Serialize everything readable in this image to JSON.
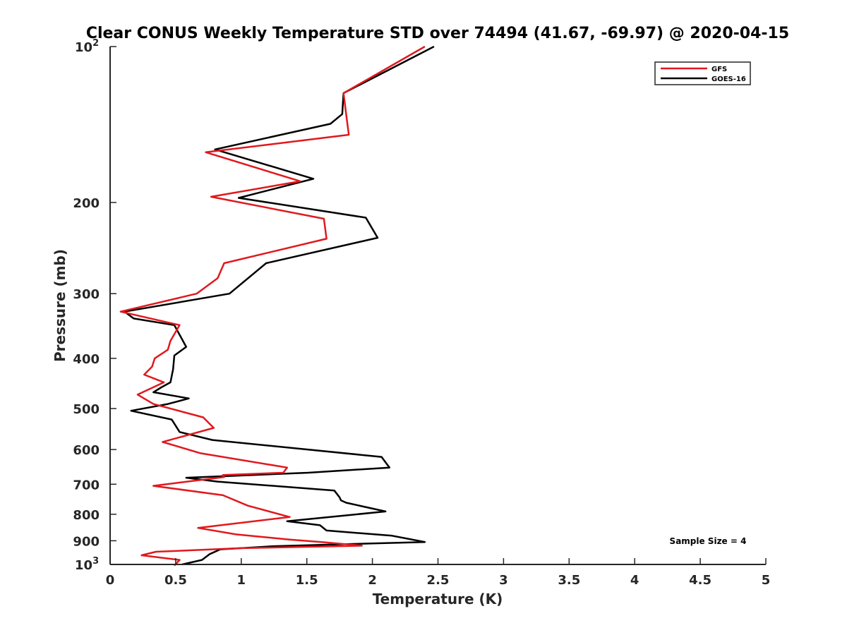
{
  "chart_data": {
    "type": "line",
    "title": "Clear CONUS Weekly Temperature STD over 74494 (41.67, -69.97) @ 2020-04-15",
    "xlabel": "Temperature (K)",
    "ylabel": "Pressure (mb)",
    "xlim": [
      0,
      5
    ],
    "ylim": [
      100,
      1000
    ],
    "yscale": "log",
    "yreversed": true,
    "x_ticks": [
      "0",
      "0.5",
      "1",
      "1.5",
      "2",
      "2.5",
      "3",
      "3.5",
      "4",
      "4.5",
      "5"
    ],
    "y_ticks": [
      {
        "value": 100,
        "label": "10",
        "sup": "2"
      },
      {
        "value": 200,
        "label": "200",
        "sup": ""
      },
      {
        "value": 300,
        "label": "300",
        "sup": ""
      },
      {
        "value": 400,
        "label": "400",
        "sup": ""
      },
      {
        "value": 500,
        "label": "500",
        "sup": ""
      },
      {
        "value": 600,
        "label": "600",
        "sup": ""
      },
      {
        "value": 700,
        "label": "700",
        "sup": ""
      },
      {
        "value": 800,
        "label": "800",
        "sup": ""
      },
      {
        "value": 900,
        "label": "900",
        "sup": ""
      },
      {
        "value": 1000,
        "label": "10",
        "sup": "3"
      }
    ],
    "legend_position": "top-right",
    "annotation": "Sample Size = 4",
    "series": [
      {
        "name": "GFS",
        "color": "#e0191e",
        "temperature": [
          2.4,
          1.78,
          1.8,
          1.82,
          0.73,
          1.45,
          0.77,
          1.63,
          1.65,
          0.87,
          0.82,
          0.66,
          0.08,
          0.53,
          0.46,
          0.44,
          0.34,
          0.32,
          0.26,
          0.41,
          0.21,
          0.33,
          0.71,
          0.79,
          0.4,
          0.69,
          1.35,
          1.32,
          0.86,
          0.87,
          0.33,
          0.86,
          1.05,
          1.37,
          0.67,
          0.96,
          1.36,
          1.61,
          1.92,
          1.0,
          0.35,
          0.24,
          0.53,
          0.49
        ],
        "pressure": [
          100,
          123,
          135,
          148,
          160,
          182,
          195,
          215,
          235,
          262,
          280,
          300,
          325,
          345,
          370,
          385,
          400,
          415,
          430,
          445,
          470,
          490,
          520,
          545,
          580,
          610,
          650,
          665,
          672,
          678,
          705,
          735,
          770,
          810,
          850,
          875,
          895,
          905,
          920,
          930,
          945,
          960,
          980,
          1005
        ]
      },
      {
        "name": "GOES-16",
        "color": "#000000",
        "temperature": [
          2.47,
          1.78,
          1.77,
          1.68,
          0.8,
          1.55,
          0.98,
          1.95,
          2.04,
          1.19,
          0.91,
          0.11,
          0.18,
          0.49,
          0.58,
          0.49,
          0.48,
          0.46,
          0.39,
          0.33,
          0.6,
          0.44,
          0.16,
          0.47,
          0.53,
          0.78,
          2.07,
          2.13,
          1.51,
          0.58,
          0.82,
          1.71,
          1.75,
          1.76,
          1.8,
          2.1,
          1.35,
          1.6,
          1.65,
          2.15,
          2.4,
          1.25,
          0.84,
          0.76,
          0.7,
          0.55
        ],
        "pressure": [
          100,
          123,
          135,
          141,
          158,
          180,
          196,
          214,
          234,
          262,
          300,
          325,
          335,
          345,
          380,
          395,
          420,
          445,
          455,
          465,
          478,
          490,
          505,
          525,
          555,
          575,
          620,
          650,
          665,
          680,
          692,
          720,
          742,
          752,
          760,
          790,
          825,
          840,
          860,
          880,
          905,
          922,
          935,
          955,
          980,
          1000
        ]
      }
    ]
  }
}
